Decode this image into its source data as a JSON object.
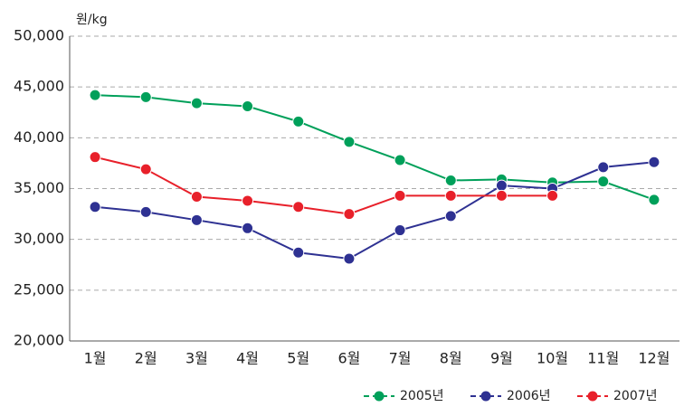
{
  "chart_data": {
    "type": "line",
    "y_unit": "원/kg",
    "categories": [
      "1월",
      "2월",
      "3월",
      "4월",
      "5월",
      "6월",
      "7월",
      "8월",
      "9월",
      "10월",
      "11월",
      "12월"
    ],
    "series": [
      {
        "name": "2005년",
        "color": "#00a05a",
        "values": [
          44200,
          44000,
          43400,
          43100,
          41600,
          39600,
          37800,
          35800,
          35900,
          35600,
          35700,
          33900
        ]
      },
      {
        "name": "2006년",
        "color": "#2e3192",
        "values": [
          33200,
          32700,
          31900,
          31100,
          28700,
          28100,
          30900,
          32300,
          35300,
          35000,
          37100,
          37600
        ]
      },
      {
        "name": "2007년",
        "color": "#e8202a",
        "values": [
          38100,
          36900,
          34200,
          33800,
          33200,
          32500,
          34300,
          34300,
          34300,
          34300,
          null,
          null
        ]
      }
    ],
    "ylim": [
      20000,
      50000
    ],
    "yticks": [
      {
        "value": 20000,
        "label": "20,000"
      },
      {
        "value": 25000,
        "label": "25,000"
      },
      {
        "value": 30000,
        "label": "30,000"
      },
      {
        "value": 35000,
        "label": "35,000"
      },
      {
        "value": 40000,
        "label": "40,000"
      },
      {
        "value": 45000,
        "label": "45,000"
      },
      {
        "value": 50000,
        "label": "50,000"
      }
    ],
    "grid": true,
    "legend": "bottom-right"
  }
}
